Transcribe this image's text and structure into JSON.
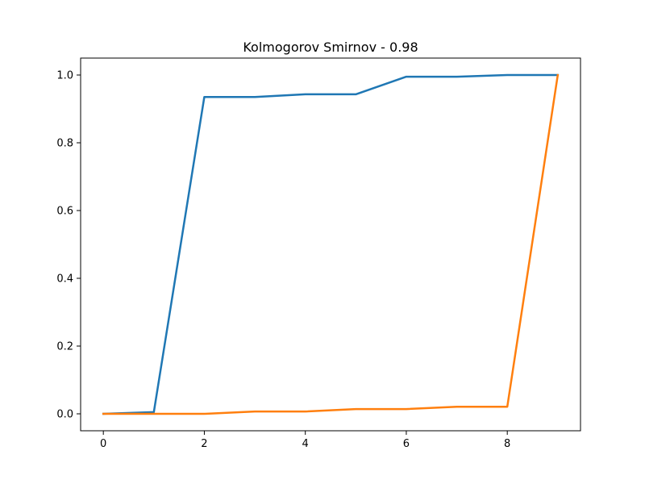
{
  "chart_data": {
    "type": "line",
    "title": "Kolmogorov Smirnov - 0.98",
    "xlabel": "",
    "ylabel": "",
    "x": [
      0,
      1,
      2,
      3,
      4,
      5,
      6,
      7,
      8,
      9
    ],
    "xlim": [
      -0.45,
      9.45
    ],
    "ylim": [
      -0.05,
      1.05
    ],
    "x_ticks": [
      "0",
      "2",
      "4",
      "6",
      "8"
    ],
    "y_ticks": [
      "0.0",
      "0.2",
      "0.4",
      "0.6",
      "0.8",
      "1.0"
    ],
    "grid": false,
    "series": [
      {
        "color": "#1f77b4",
        "values": [
          0.0,
          0.005,
          0.935,
          0.935,
          0.943,
          0.943,
          0.995,
          0.995,
          1.0,
          1.0
        ]
      },
      {
        "color": "#ff7f0e",
        "values": [
          0.0,
          0.0,
          0.0,
          0.007,
          0.007,
          0.014,
          0.014,
          0.021,
          0.021,
          1.0
        ]
      }
    ]
  }
}
